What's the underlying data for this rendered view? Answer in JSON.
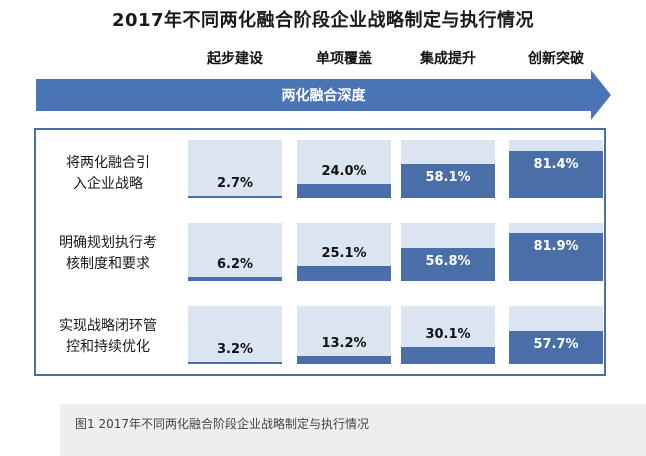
{
  "title": "2017年不同两化融合阶段企业战略制定与执行情况",
  "caption": "图1 2017年不同两化融合阶段企业战略制定与执行情况",
  "arrow": {
    "label": "两化融合深度",
    "color": "#4a75b4"
  },
  "colors": {
    "cell_background": "#dbe4f1",
    "fill": "#4a6fa8",
    "panel_border": "#4a6fa0"
  },
  "chart_data": {
    "type": "bar",
    "unit": "%",
    "categories": [
      "起步建设",
      "单项覆盖",
      "集成提升",
      "创新突破"
    ],
    "ylim": [
      0,
      100
    ],
    "series": [
      {
        "name_lines": [
          "将两化融合引",
          "入企业战略"
        ],
        "values": [
          2.7,
          24.0,
          58.1,
          81.4
        ],
        "labels": [
          "2.7%",
          "24.0%",
          "58.1%",
          "81.4%"
        ]
      },
      {
        "name_lines": [
          "明确规划执行考",
          "核制度和要求"
        ],
        "values": [
          6.2,
          25.1,
          56.8,
          81.9
        ],
        "labels": [
          "6.2%",
          "25.1%",
          "56.8%",
          "81.9%"
        ]
      },
      {
        "name_lines": [
          "实现战略闭环管",
          "控和持续优化"
        ],
        "values": [
          3.2,
          13.2,
          30.1,
          57.7
        ],
        "labels": [
          "3.2%",
          "13.2%",
          "30.1%",
          "57.7%"
        ]
      }
    ]
  }
}
